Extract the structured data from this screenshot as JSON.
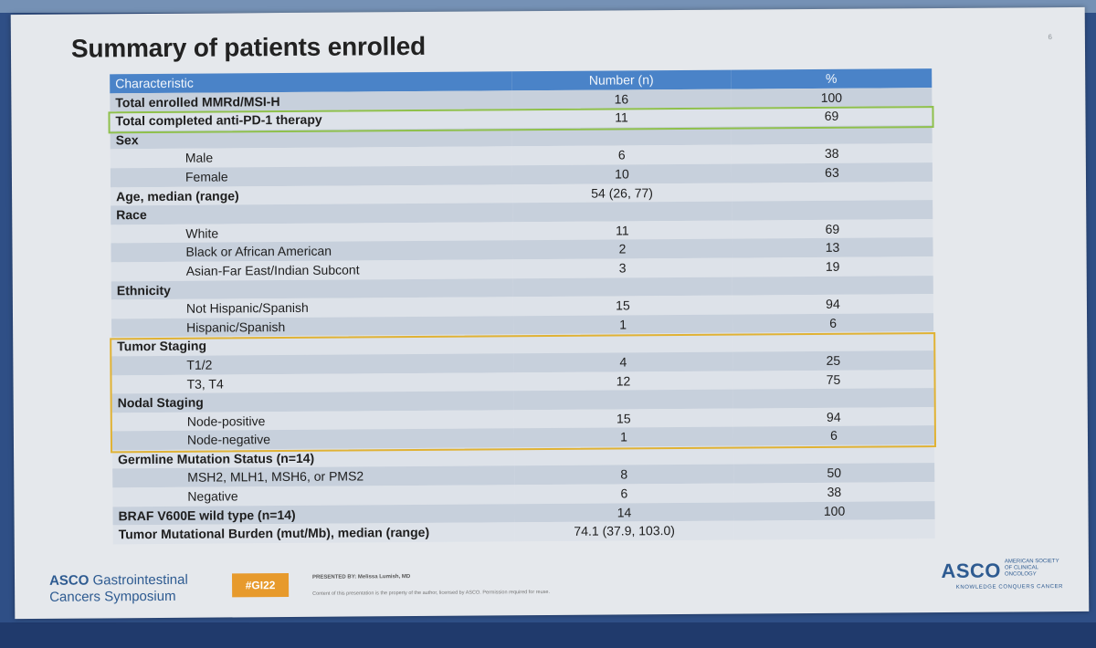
{
  "slide": {
    "number": "6",
    "title": "Summary of patients enrolled"
  },
  "table": {
    "headers": [
      "Characteristic",
      "Number (n)",
      "%"
    ],
    "rows": [
      {
        "label": "Total enrolled MMRd/MSI-H",
        "n": "16",
        "pct": "100",
        "kind": "category"
      },
      {
        "label": "Total completed anti-PD-1 therapy",
        "n": "11",
        "pct": "69",
        "kind": "category"
      },
      {
        "label": "Sex",
        "n": "",
        "pct": "",
        "kind": "category"
      },
      {
        "label": "Male",
        "n": "6",
        "pct": "38",
        "kind": "sub"
      },
      {
        "label": "Female",
        "n": "10",
        "pct": "63",
        "kind": "sub"
      },
      {
        "label": "Age, median (range)",
        "n": "54 (26, 77)",
        "pct": "",
        "kind": "category"
      },
      {
        "label": "Race",
        "n": "",
        "pct": "",
        "kind": "category"
      },
      {
        "label": "White",
        "n": "11",
        "pct": "69",
        "kind": "sub"
      },
      {
        "label": "Black or African American",
        "n": "2",
        "pct": "13",
        "kind": "sub"
      },
      {
        "label": "Asian-Far East/Indian Subcont",
        "n": "3",
        "pct": "19",
        "kind": "sub"
      },
      {
        "label": "Ethnicity",
        "n": "",
        "pct": "",
        "kind": "category"
      },
      {
        "label": "Not Hispanic/Spanish",
        "n": "15",
        "pct": "94",
        "kind": "sub"
      },
      {
        "label": "Hispanic/Spanish",
        "n": "1",
        "pct": "6",
        "kind": "sub"
      },
      {
        "label": "Tumor Staging",
        "n": "",
        "pct": "",
        "kind": "category"
      },
      {
        "label": "T1/2",
        "n": "4",
        "pct": "25",
        "kind": "sub"
      },
      {
        "label": "T3, T4",
        "n": "12",
        "pct": "75",
        "kind": "sub"
      },
      {
        "label": "Nodal Staging",
        "n": "",
        "pct": "",
        "kind": "category"
      },
      {
        "label": "Node-positive",
        "n": "15",
        "pct": "94",
        "kind": "sub"
      },
      {
        "label": "Node-negative",
        "n": "1",
        "pct": "6",
        "kind": "sub"
      },
      {
        "label": "Germline Mutation Status (n=14)",
        "n": "",
        "pct": "",
        "kind": "category"
      },
      {
        "label": "MSH2, MLH1, MSH6, or PMS2",
        "n": "8",
        "pct": "50",
        "kind": "sub"
      },
      {
        "label": "Negative",
        "n": "6",
        "pct": "38",
        "kind": "sub"
      },
      {
        "label": "BRAF V600E wild type (n=14)",
        "n": "14",
        "pct": "100",
        "kind": "category"
      },
      {
        "label": "Tumor Mutational Burden (mut/Mb), median (range)",
        "n": "74.1 (37.9, 103.0)",
        "pct": "",
        "kind": "category"
      }
    ]
  },
  "footer": {
    "symposium_brand": "ASCO",
    "symposium_line1": "Gastrointestinal",
    "symposium_line2": "Cancers Symposium",
    "hashtag": "#GI22",
    "presented_by": "PRESENTED BY: Melissa Lumish, MD",
    "notice": "Content of this presentation is the property of the author, licensed by ASCO. Permission required for reuse.",
    "asco_brand": "ASCO",
    "asco_org": "AMERICAN SOCIETY OF CLINICAL ONCOLOGY",
    "asco_tagline": "KNOWLEDGE CONQUERS CANCER"
  },
  "colors": {
    "header_row": "#4a83c8",
    "row_odd": "#c7d0dc",
    "row_even": "#dde2e9",
    "highlight_green": "#8fc04c",
    "highlight_yellow": "#e0b234",
    "hashtag_bg": "#e79a2c"
  }
}
